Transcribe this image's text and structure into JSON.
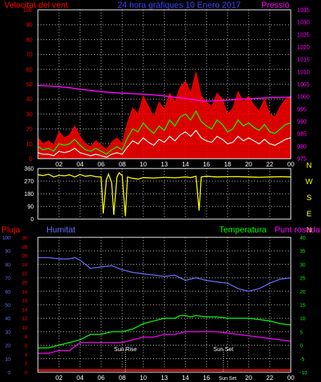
{
  "colors": {
    "background": "#000000",
    "frame": "#ffffff",
    "grid": "#d8d8d8",
    "wind_speed": "#ff0000",
    "wind_gust_fill": "#ff0000",
    "wind_avg": "#00ff00",
    "wind_low": "#e8ffe8",
    "pressure": "#ff00ff",
    "title": "#4040ff",
    "direction": "#ffff00",
    "humidity": "#6a6aff",
    "temperature": "#00ff00",
    "dewpoint": "#ff00ff",
    "rain": "#ff0000",
    "rain_axis_tick": "#ff0000",
    "event_marker": "#ffffff"
  },
  "chart_data": [
    {
      "type": "line",
      "title": "24 hora gràfiques 10 Enero 2017",
      "left_axis_label": "Velocitat del vent",
      "right_axis_label": "Pressió",
      "left_ticks": [
        "0",
        "10",
        "20",
        "30",
        "40",
        "50",
        "60",
        "70",
        "80",
        "90",
        "100"
      ],
      "right_ticks": [
        "975",
        "980",
        "985",
        "990",
        "995",
        "1000",
        "1005",
        "1010",
        "1015",
        "1020",
        "1025",
        "1030",
        "1035"
      ],
      "ylim_left": [
        0,
        100
      ],
      "ylim_right": [
        975,
        1035
      ],
      "x_ticks": [
        "02",
        "04",
        "06",
        "08",
        "10",
        "13",
        "14",
        "16",
        "18",
        "20",
        "22",
        "00"
      ],
      "series": [
        {
          "key": "wind_gust",
          "x": [
            0,
            0.5,
            1,
            1.5,
            2,
            2.5,
            3,
            3.5,
            4,
            4.5,
            5,
            5.5,
            6,
            6.5,
            7,
            7.5,
            8,
            8.5,
            9,
            9.5,
            10,
            10.5,
            11,
            11.5,
            12,
            12.5,
            13,
            13.5,
            14,
            14.5,
            15,
            15.5,
            16,
            16.5,
            17,
            17.5,
            18,
            18.5,
            19,
            19.5,
            20,
            20.5,
            21,
            21.5,
            22,
            22.5,
            23,
            23.5,
            24
          ],
          "values": [
            14,
            10,
            12,
            9,
            18,
            14,
            16,
            22,
            15,
            10,
            8,
            12,
            9,
            6,
            11,
            14,
            10,
            24,
            34,
            30,
            42,
            35,
            28,
            38,
            33,
            44,
            38,
            48,
            52,
            44,
            58,
            42,
            38,
            35,
            44,
            40,
            30,
            34,
            45,
            38,
            42,
            36,
            32,
            40,
            30,
            28,
            35,
            40,
            42
          ]
        },
        {
          "key": "wind_avg",
          "x": [
            0,
            0.5,
            1,
            1.5,
            2,
            2.5,
            3,
            3.5,
            4,
            4.5,
            5,
            5.5,
            6,
            6.5,
            7,
            7.5,
            8,
            8.5,
            9,
            9.5,
            10,
            10.5,
            11,
            11.5,
            12,
            12.5,
            13,
            13.5,
            14,
            14.5,
            15,
            15.5,
            16,
            16.5,
            17,
            17.5,
            18,
            18.5,
            19,
            19.5,
            20,
            20.5,
            21,
            21.5,
            22,
            22.5,
            23,
            23.5,
            24
          ],
          "values": [
            8,
            6,
            7,
            5,
            10,
            9,
            10,
            13,
            9,
            6,
            5,
            7,
            5,
            3,
            6,
            8,
            6,
            14,
            20,
            18,
            24,
            20,
            17,
            22,
            19,
            26,
            22,
            28,
            30,
            26,
            32,
            25,
            22,
            20,
            26,
            23,
            18,
            20,
            26,
            22,
            24,
            21,
            19,
            23,
            18,
            17,
            20,
            23,
            24
          ]
        },
        {
          "key": "wind_low",
          "x": [
            0,
            0.5,
            1,
            1.5,
            2,
            2.5,
            3,
            3.5,
            4,
            4.5,
            5,
            5.5,
            6,
            6.5,
            7,
            7.5,
            8,
            8.5,
            9,
            9.5,
            10,
            10.5,
            11,
            11.5,
            12,
            12.5,
            13,
            13.5,
            14,
            14.5,
            15,
            15.5,
            16,
            16.5,
            17,
            17.5,
            18,
            18.5,
            19,
            19.5,
            20,
            20.5,
            21,
            21.5,
            22,
            22.5,
            23,
            23.5,
            24
          ],
          "values": [
            4,
            3,
            3,
            2,
            5,
            4,
            5,
            7,
            4,
            3,
            2,
            3,
            2,
            1,
            3,
            4,
            3,
            8,
            12,
            10,
            14,
            11,
            9,
            13,
            11,
            15,
            12,
            16,
            18,
            15,
            19,
            14,
            12,
            11,
            15,
            13,
            10,
            11,
            15,
            12,
            14,
            12,
            10,
            13,
            10,
            9,
            11,
            13,
            14
          ]
        },
        {
          "key": "pressure",
          "axis": "right",
          "x": [
            0,
            1,
            2,
            3,
            4,
            5,
            6,
            7,
            8,
            9,
            10,
            11,
            12,
            13,
            14,
            15,
            16,
            17,
            18,
            19,
            20,
            21,
            22,
            23,
            24
          ],
          "values": [
            1004.5,
            1004.3,
            1004.0,
            1003.6,
            1003.0,
            1002.5,
            1002.0,
            1001.7,
            1001.4,
            1001.2,
            1001.0,
            1000.7,
            1000.3,
            999.8,
            999.3,
            998.6,
            998.2,
            998.4,
            998.6,
            998.9,
            999.2,
            999.4,
            999.6,
            999.7,
            999.8
          ]
        }
      ]
    },
    {
      "type": "line",
      "right_axis_label": "N W S E N",
      "right_axis_letters": [
        "N",
        "W",
        "S",
        "E",
        "N"
      ],
      "left_ticks": [
        "0",
        "90",
        "180",
        "270",
        "360"
      ],
      "ylim": [
        0,
        360
      ],
      "series": [
        {
          "key": "wind_direction",
          "x": [
            0,
            0.5,
            1,
            1.5,
            2,
            2.5,
            3,
            3.5,
            4,
            4.5,
            5,
            5.5,
            6,
            6.2,
            6.5,
            6.7,
            7,
            7.2,
            7.5,
            7.7,
            8,
            8.3,
            8.5,
            9,
            9.5,
            10,
            11,
            12,
            13,
            14,
            14.5,
            15,
            15.3,
            15.5,
            16,
            17,
            18,
            19,
            20,
            21,
            22,
            23,
            24
          ],
          "values": [
            315,
            310,
            320,
            300,
            312,
            308,
            315,
            300,
            318,
            305,
            310,
            302,
            300,
            40,
            280,
            320,
            260,
            30,
            300,
            330,
            310,
            20,
            300,
            290,
            285,
            295,
            292,
            298,
            294,
            300,
            296,
            305,
            60,
            300,
            305,
            300,
            302,
            303,
            300,
            298,
            300,
            302,
            300
          ]
        }
      ]
    },
    {
      "type": "line",
      "left_axis_label": "Pluja",
      "humidity_label": "Humitat",
      "temperature_label": "Temperatura",
      "dewpoint_label": "Punt rosada",
      "rain_ticks": [
        "0",
        "2",
        "4",
        "6",
        "8",
        "10",
        "12",
        "14",
        "16",
        "18",
        "20",
        "22",
        "24",
        "26",
        "28",
        "30"
      ],
      "humidity_ticks": [
        "0",
        "10",
        "20",
        "30",
        "40",
        "50",
        "60",
        "70",
        "80",
        "90",
        "100"
      ],
      "temperature_ticks": [
        "-10",
        "-5",
        "0",
        "5",
        "10",
        "15",
        "20",
        "25",
        "30",
        "35",
        "40"
      ],
      "ylim_humidity": [
        0,
        100
      ],
      "ylim_temperature": [
        -10,
        40
      ],
      "x_ticks": [
        "02",
        "04",
        "06",
        "08",
        "10",
        "13",
        "14",
        "16",
        "Sun Set",
        "20",
        "22",
        "00"
      ],
      "annotations": [
        "Sun Rise",
        "Sun Set"
      ],
      "sunrise_x": 8.3,
      "sunset_x": 17.6,
      "series": [
        {
          "key": "humidity",
          "x": [
            0,
            1,
            2,
            3,
            3.5,
            4,
            4.5,
            5,
            6,
            7,
            8,
            9,
            10,
            11,
            12,
            13,
            14,
            15,
            16,
            17,
            18,
            19,
            20,
            21,
            22,
            23,
            24
          ],
          "values": [
            85,
            85,
            84,
            84,
            85,
            83,
            80,
            77,
            78,
            79,
            76,
            74,
            73,
            72,
            71,
            72,
            68,
            70,
            68,
            67,
            66,
            62,
            60,
            62,
            66,
            69,
            70
          ]
        },
        {
          "key": "temperature",
          "x": [
            0,
            1,
            2,
            3,
            4,
            5,
            6,
            7,
            8,
            9,
            10,
            11,
            12,
            13,
            13.5,
            14,
            14.5,
            15,
            16,
            17,
            18,
            19,
            20,
            21,
            22,
            23,
            24
          ],
          "values": [
            -1,
            -1,
            0,
            1,
            2,
            4,
            4,
            5,
            5,
            6,
            8,
            9,
            10,
            10,
            11,
            11,
            10.5,
            11,
            10.5,
            10.5,
            10,
            10,
            10,
            9.5,
            9,
            8,
            7.5
          ]
        },
        {
          "key": "dewpoint",
          "x": [
            0,
            1,
            2,
            3,
            4,
            5,
            6,
            7,
            8,
            9,
            10,
            11,
            12,
            13,
            14,
            15,
            16,
            17,
            18,
            19,
            20,
            21,
            22,
            23,
            24
          ],
          "values": [
            -3,
            -3,
            -2,
            -2,
            1,
            1,
            1,
            1,
            1,
            2,
            3,
            3,
            4,
            4,
            5,
            5,
            5,
            5,
            4.5,
            4,
            3.5,
            3,
            2.5,
            2,
            1.5
          ]
        },
        {
          "key": "rain",
          "x": [
            0,
            24
          ],
          "values": [
            0,
            0
          ]
        }
      ]
    }
  ]
}
